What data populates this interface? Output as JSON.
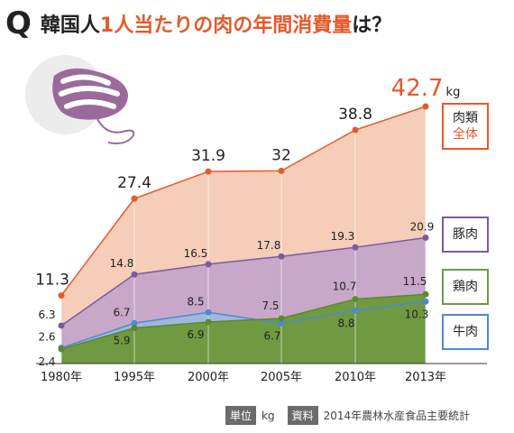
{
  "title": {
    "q_mark": "Q",
    "part1": "韓国人",
    "part2": "1人当たりの肉の年間消費量",
    "part3": "は？"
  },
  "colors": {
    "total": "#e65a2a",
    "pork": "#7b5aa0",
    "chicken": "#5a8a2a",
    "beef": "#4a8ad0",
    "total_fill": "#f5cdb8",
    "pork_fill": "#c8a8c8",
    "chicken_fill": "#6f9a42",
    "beef_fill": "#9fb8dc"
  },
  "labels": {
    "total": [
      "肉類",
      "全体"
    ],
    "pork": "豚肉",
    "chicken": "鶏肉",
    "beef": "牛肉"
  },
  "source": {
    "unit_tag": "単位",
    "unit_value": "kg",
    "source_tag": "資料",
    "source_value": "2014年農林水産食品主要統計"
  },
  "chart_data": {
    "type": "area",
    "categories": [
      "1980年",
      "1995年",
      "2000年",
      "2005年",
      "2010年",
      "2013年"
    ],
    "series": [
      {
        "key": "total",
        "values": [
          11.3,
          27.4,
          31.9,
          32,
          38.8,
          42.7
        ],
        "value_labels": [
          "11.3",
          "27.4",
          "31.9",
          "32",
          "38.8",
          "42.7"
        ],
        "last_unit": "kg"
      },
      {
        "key": "pork",
        "values": [
          6.3,
          14.8,
          16.5,
          17.8,
          19.3,
          20.9
        ],
        "value_labels": [
          "6.3",
          "14.8",
          "16.5",
          "17.8",
          "19.3",
          "20.9"
        ]
      },
      {
        "key": "chicken",
        "values": [
          2.4,
          5.9,
          6.9,
          7.5,
          10.7,
          11.5
        ],
        "value_labels": [
          "2.4",
          "5.9",
          "6.9",
          "7.5",
          "10.7",
          "11.5"
        ]
      },
      {
        "key": "beef",
        "values": [
          2.6,
          6.7,
          8.5,
          6.7,
          8.8,
          10.3
        ],
        "value_labels": [
          "2.6",
          "6.7",
          "8.5",
          "6.7",
          "8.8",
          "10.3"
        ]
      }
    ],
    "ylim": [
      0,
      45
    ]
  }
}
